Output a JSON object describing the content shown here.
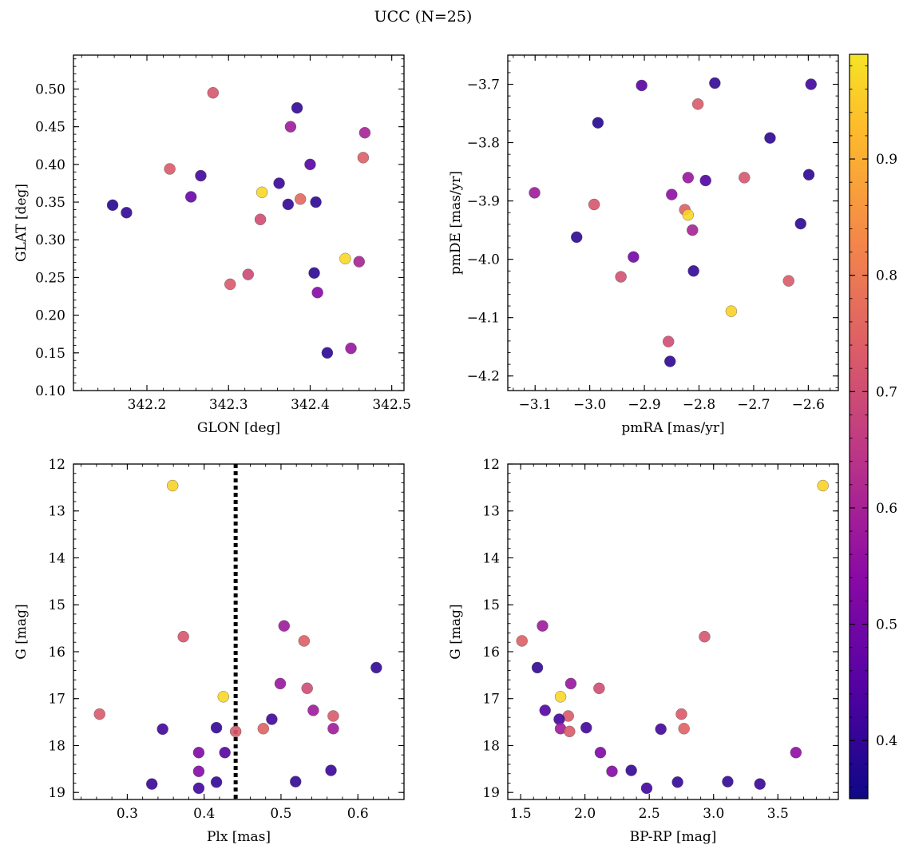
{
  "figure": {
    "title": "UCC (N=25)"
  },
  "colorbar": {
    "range": [
      0.35,
      0.99
    ],
    "ticks": [
      0.4,
      0.5,
      0.6,
      0.7,
      0.8,
      0.9
    ],
    "tick_labels": [
      "0.4",
      "0.5",
      "0.6",
      "0.7",
      "0.8",
      "0.9"
    ],
    "colormap": "plasma",
    "colormap_range": [
      0.0,
      0.95
    ]
  },
  "chart_data": [
    {
      "id": "glon-glat",
      "type": "scatter",
      "xlabel": "GLON [deg]",
      "ylabel": "GLAT [deg]",
      "xlim": [
        342.11,
        342.515
      ],
      "ylim": [
        0.1,
        0.545
      ],
      "y_inverted": false,
      "xticks": [
        342.2,
        342.3,
        342.4,
        342.5
      ],
      "xtick_labels": [
        "342.2",
        "342.3",
        "342.4",
        "342.5"
      ],
      "yticks": [
        0.1,
        0.15,
        0.2,
        0.25,
        0.3,
        0.35,
        0.4,
        0.45,
        0.5
      ],
      "ytick_labels": [
        "0.10",
        "0.15",
        "0.20",
        "0.25",
        "0.30",
        "0.35",
        "0.40",
        "0.45",
        "0.50"
      ],
      "x": [
        342.281,
        342.384,
        342.376,
        342.467,
        342.465,
        342.228,
        342.4,
        342.266,
        342.362,
        342.341,
        342.254,
        342.388,
        342.158,
        342.373,
        342.407,
        342.175,
        342.339,
        342.443,
        342.46,
        342.324,
        342.302,
        342.405,
        342.409,
        342.45,
        342.421
      ],
      "y": [
        0.495,
        0.475,
        0.45,
        0.442,
        0.409,
        0.394,
        0.4,
        0.385,
        0.375,
        0.363,
        0.357,
        0.354,
        0.346,
        0.347,
        0.35,
        0.336,
        0.327,
        0.275,
        0.271,
        0.254,
        0.241,
        0.256,
        0.23,
        0.156,
        0.15
      ],
      "c": [
        0.72,
        0.4,
        0.58,
        0.6,
        0.74,
        0.73,
        0.45,
        0.42,
        0.41,
        0.97,
        0.48,
        0.76,
        0.38,
        0.4,
        0.39,
        0.4,
        0.7,
        0.97,
        0.6,
        0.69,
        0.73,
        0.39,
        0.53,
        0.57,
        0.39
      ]
    },
    {
      "id": "pmra-pmde",
      "type": "scatter",
      "xlabel": "pmRA [mas/yr]",
      "ylabel": "pmDE [mas/yr]",
      "xlim": [
        -3.15,
        -2.545
      ],
      "ylim": [
        -4.225,
        -3.65
      ],
      "y_inverted": false,
      "xticks": [
        -3.1,
        -3.0,
        -2.9,
        -2.8,
        -2.7,
        -2.6
      ],
      "xtick_labels": [
        "−3.1",
        "−3.0",
        "−2.9",
        "−2.8",
        "−2.7",
        "−2.6"
      ],
      "yticks": [
        -4.2,
        -4.1,
        -4.0,
        -3.9,
        -3.8,
        -3.7
      ],
      "ytick_labels": [
        "−4.2",
        "−4.1",
        "−4.0",
        "−3.9",
        "−3.8",
        "−3.7"
      ],
      "x": [
        -2.905,
        -2.771,
        -2.595,
        -2.802,
        -2.985,
        -2.67,
        -2.599,
        -2.82,
        -2.788,
        -2.717,
        -3.101,
        -2.85,
        -2.992,
        -2.826,
        -2.82,
        -3.024,
        -2.812,
        -2.614,
        -2.92,
        -2.943,
        -2.81,
        -2.636,
        -2.741,
        -2.856,
        -2.853
      ],
      "y": [
        -3.702,
        -3.698,
        -3.7,
        -3.734,
        -3.766,
        -3.792,
        -3.855,
        -3.86,
        -3.865,
        -3.86,
        -3.886,
        -3.889,
        -3.906,
        -3.915,
        -3.924,
        -3.962,
        -3.95,
        -3.939,
        -3.996,
        -4.03,
        -4.02,
        -4.037,
        -4.089,
        -4.141,
        -4.175
      ],
      "c": [
        0.45,
        0.4,
        0.42,
        0.73,
        0.38,
        0.39,
        0.39,
        0.57,
        0.44,
        0.72,
        0.58,
        0.55,
        0.72,
        0.74,
        0.97,
        0.39,
        0.6,
        0.39,
        0.5,
        0.71,
        0.4,
        0.73,
        0.96,
        0.7,
        0.39
      ]
    },
    {
      "id": "plx-g",
      "type": "scatter",
      "xlabel": "Plx [mas]",
      "ylabel": "G [mag]",
      "xlim": [
        0.23,
        0.66
      ],
      "ylim": [
        19.15,
        12.0
      ],
      "y_inverted": true,
      "xticks": [
        0.3,
        0.4,
        0.5,
        0.6
      ],
      "xtick_labels": [
        "0.3",
        "0.4",
        "0.5",
        "0.6"
      ],
      "yticks": [
        12,
        13,
        14,
        15,
        16,
        17,
        18,
        19
      ],
      "ytick_labels": [
        "12",
        "13",
        "14",
        "15",
        "16",
        "17",
        "18",
        "19"
      ],
      "vline": {
        "x": 0.441,
        "style": "dotted"
      },
      "x": [
        0.359,
        0.504,
        0.373,
        0.53,
        0.624,
        0.499,
        0.534,
        0.425,
        0.542,
        0.264,
        0.568,
        0.488,
        0.346,
        0.416,
        0.568,
        0.477,
        0.441,
        0.393,
        0.427,
        0.393,
        0.565,
        0.519,
        0.416,
        0.332,
        0.393
      ],
      "y": [
        12.46,
        15.45,
        15.68,
        15.77,
        16.34,
        16.68,
        16.78,
        16.96,
        17.25,
        17.33,
        17.37,
        17.44,
        17.65,
        17.62,
        17.64,
        17.64,
        17.7,
        18.15,
        18.15,
        18.55,
        18.53,
        18.77,
        18.78,
        18.82,
        18.91
      ],
      "c": [
        0.96,
        0.58,
        0.72,
        0.74,
        0.4,
        0.57,
        0.7,
        0.97,
        0.58,
        0.73,
        0.73,
        0.42,
        0.42,
        0.4,
        0.58,
        0.75,
        0.73,
        0.52,
        0.45,
        0.53,
        0.41,
        0.4,
        0.4,
        0.41,
        0.42
      ]
    },
    {
      "id": "bprp-g",
      "type": "scatter",
      "xlabel": "BP-RP [mag]",
      "ylabel": "G [mag]",
      "xlim": [
        1.4,
        3.97
      ],
      "ylim": [
        19.15,
        12.0
      ],
      "y_inverted": true,
      "xticks": [
        1.5,
        2.0,
        2.5,
        3.0,
        3.5
      ],
      "xtick_labels": [
        "1.5",
        "2.0",
        "2.5",
        "3.0",
        "3.5"
      ],
      "yticks": [
        12,
        13,
        14,
        15,
        16,
        17,
        18,
        19
      ],
      "ytick_labels": [
        "12",
        "13",
        "14",
        "15",
        "16",
        "17",
        "18",
        "19"
      ],
      "x": [
        3.85,
        1.67,
        2.93,
        1.51,
        1.63,
        1.89,
        2.11,
        1.81,
        1.69,
        2.75,
        1.87,
        1.8,
        2.01,
        2.59,
        1.81,
        2.77,
        1.88,
        2.12,
        3.64,
        2.21,
        2.36,
        3.11,
        2.72,
        3.36,
        2.48
      ],
      "y": [
        12.46,
        15.45,
        15.68,
        15.77,
        16.34,
        16.68,
        16.78,
        16.96,
        17.25,
        17.33,
        17.37,
        17.44,
        17.62,
        17.65,
        17.64,
        17.64,
        17.7,
        18.15,
        18.15,
        18.55,
        18.53,
        18.77,
        18.78,
        18.82,
        18.91
      ],
      "c": [
        0.96,
        0.58,
        0.72,
        0.74,
        0.4,
        0.57,
        0.7,
        0.97,
        0.45,
        0.73,
        0.73,
        0.42,
        0.42,
        0.42,
        0.58,
        0.75,
        0.73,
        0.52,
        0.55,
        0.53,
        0.4,
        0.4,
        0.4,
        0.41,
        0.42
      ]
    }
  ]
}
